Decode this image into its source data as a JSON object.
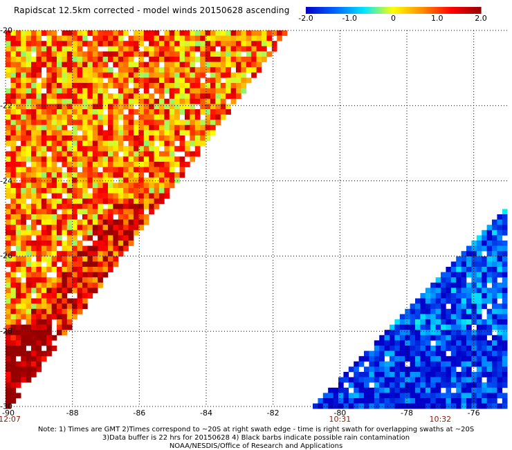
{
  "chart_data": {
    "type": "heatmap",
    "title": "Rapidscat 12.5km corrected - model winds 20150628 ascending",
    "xlabel": "",
    "ylabel": "",
    "xlim": [
      -90,
      -75
    ],
    "ylim": [
      -30,
      -20
    ],
    "x_ticks": [
      "-90",
      "-88",
      "-86",
      "-84",
      "-82",
      "-80",
      "-78",
      "-76"
    ],
    "x_tick_values": [
      -90,
      -88,
      -86,
      -84,
      -82,
      -80,
      -78,
      -76
    ],
    "y_ticks": [
      "-20",
      "-22",
      "-24",
      "-26",
      "-28",
      "-30"
    ],
    "y_tick_values": [
      -20,
      -22,
      -24,
      -26,
      -28,
      -30
    ],
    "grid": true,
    "colorbar": {
      "range": [
        -2.0,
        2.0
      ],
      "tick_labels": [
        "-2.0",
        "-1.0",
        "0",
        "1.0",
        "2.0"
      ],
      "tick_values": [
        -2.0,
        -1.0,
        0,
        1.0,
        2.0
      ],
      "colors": [
        "#0000c8",
        "#0064ff",
        "#00e6ff",
        "#ffff00",
        "#ff8c00",
        "#ff0000",
        "#960000"
      ]
    },
    "time_labels": [
      {
        "x": -90,
        "text": "12:07"
      },
      {
        "x": -80,
        "text": "10:31"
      },
      {
        "x": -77,
        "text": "10:32"
      }
    ],
    "swaths": [
      {
        "name": "",
        "lon_range": [
          -90,
          -81.7
        ],
        "mean_value": 0.7
      },
      {
        "name": "",
        "lon_range": [
          -81,
          -75
        ],
        "mean_value": -1.4
      }
    ]
  },
  "notes": {
    "line1": "Note: 1) Times are GMT 2)Times correspond to ~20S at right swath edge - time is right swath for overlapping swaths at ~20S",
    "line2": "3)Data buffer is 22 hrs for 20150628 4) Black barbs indicate possible rain contamination",
    "line3": "NOAA/NESDIS/Office of Research and Applications"
  }
}
